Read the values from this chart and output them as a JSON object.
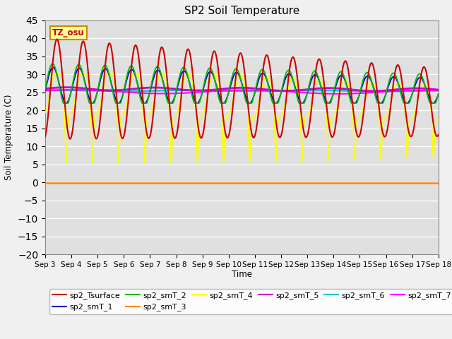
{
  "title": "SP2 Soil Temperature",
  "xlabel": "Time",
  "ylabel": "Soil Temperature (C)",
  "ylim": [
    -20,
    45
  ],
  "yticks": [
    -20,
    -15,
    -10,
    -5,
    0,
    5,
    10,
    15,
    20,
    25,
    30,
    35,
    40,
    45
  ],
  "tz_label": "TZ_osu",
  "fig_facecolor": "#f0f0f0",
  "plot_bg_color": "#e0e0e0",
  "series_colors": {
    "sp2_Tsurface": "#cc0000",
    "sp2_smT_1": "#0000cc",
    "sp2_smT_2": "#00bb00",
    "sp2_smT_3": "#ff8800",
    "sp2_smT_4": "#ffff00",
    "sp2_smT_5": "#cc00cc",
    "sp2_smT_6": "#00cccc",
    "sp2_smT_7": "#ff00ff"
  },
  "x_tick_labels": [
    "Sep 3",
    "Sep 4",
    "Sep 5",
    "Sep 6",
    "Sep 7",
    "Sep 8",
    "Sep 9",
    "Sep 10",
    "Sep 11",
    "Sep 12",
    "Sep 13",
    "Sep 14",
    "Sep 15",
    "Sep 16",
    "Sep 17",
    "Sep 18"
  ]
}
